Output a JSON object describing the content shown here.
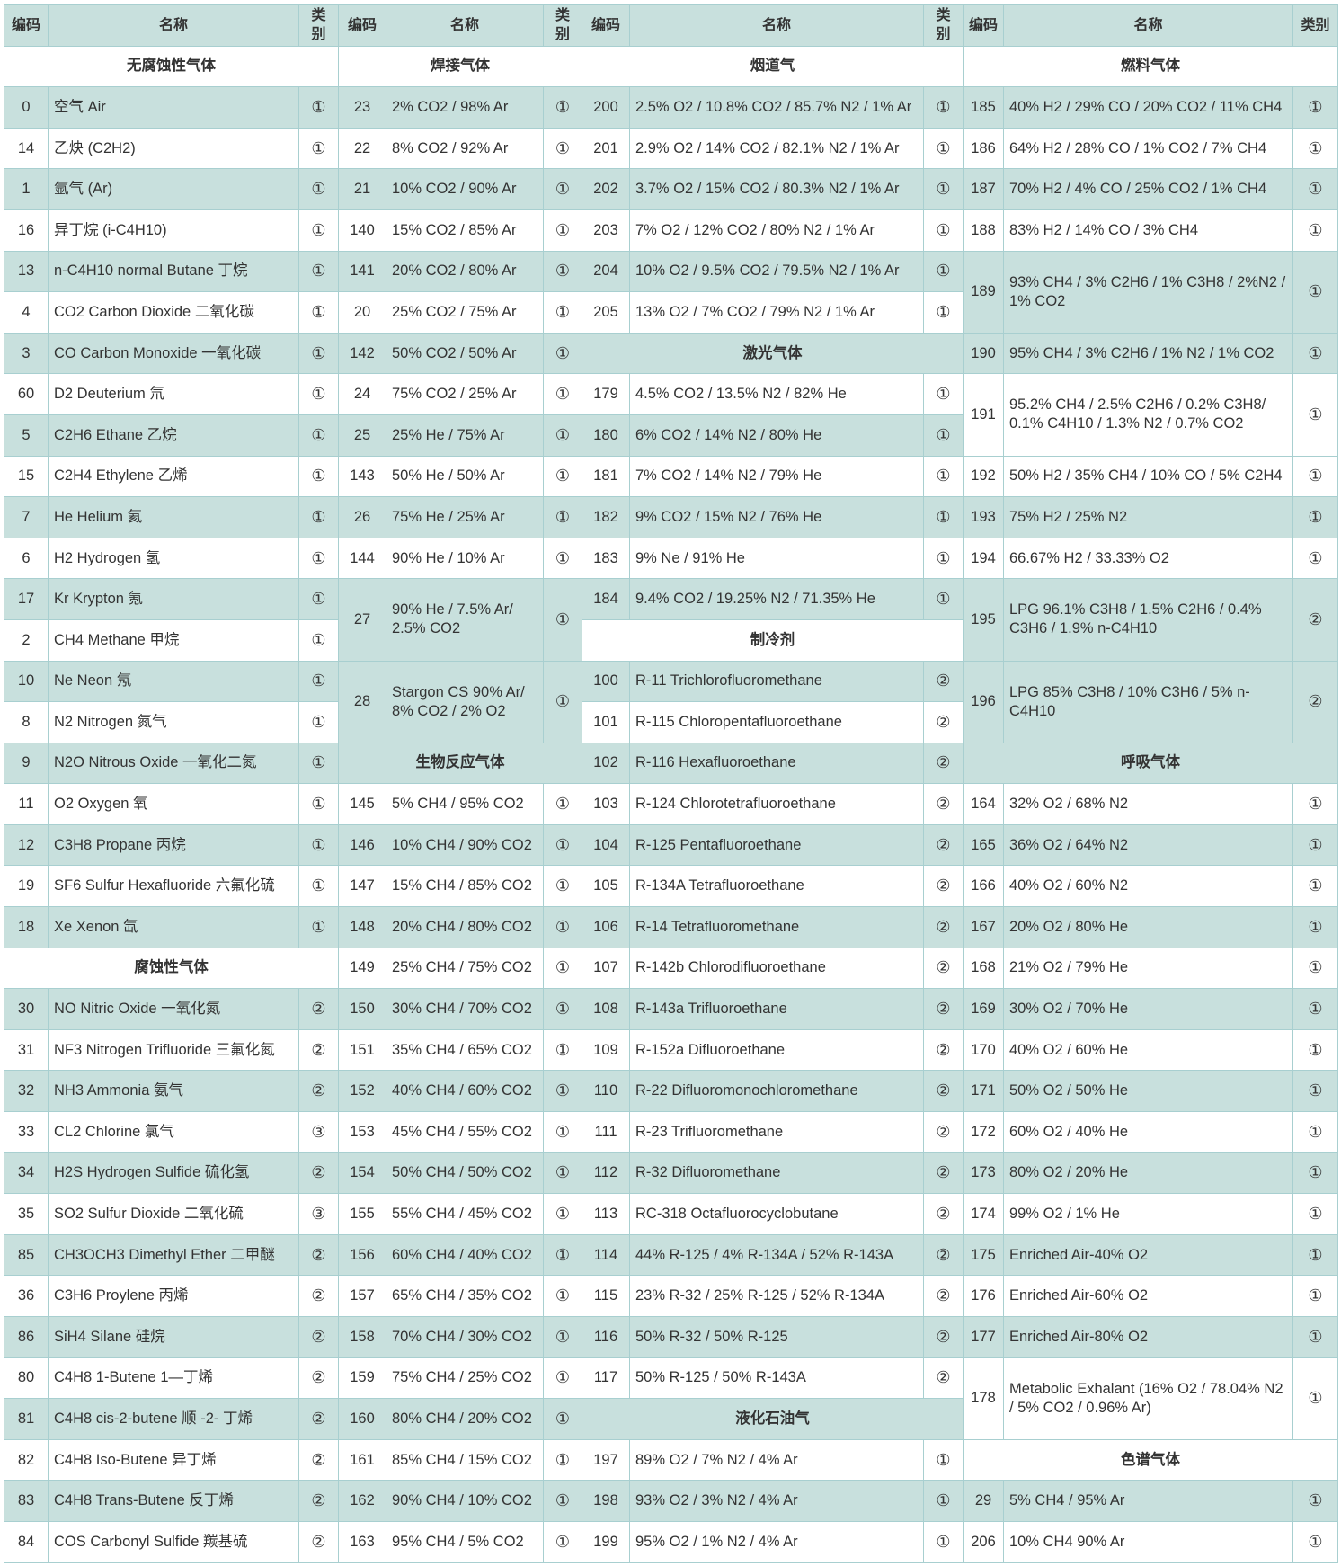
{
  "header": {
    "code": "编码",
    "name": "名称",
    "cat": "类别"
  },
  "colors": {
    "shade": "#c8e0dd",
    "border": "#a8cfd0",
    "text": "#333333"
  },
  "groups": [
    {
      "entries": [
        {
          "section": "无腐蚀性气体"
        },
        {
          "code": "0",
          "name": "空气 Air",
          "cat": "①"
        },
        {
          "code": "14",
          "name": "乙炔 (C2H2)",
          "cat": "①"
        },
        {
          "code": "1",
          "name": "氩气 (Ar)",
          "cat": "①"
        },
        {
          "code": "16",
          "name": "异丁烷 (i-C4H10)",
          "cat": "①"
        },
        {
          "code": "13",
          "name": "n-C4H10 normal Butane 丁烷",
          "cat": "①"
        },
        {
          "code": "4",
          "name": "CO2 Carbon Dioxide 二氧化碳",
          "cat": "①"
        },
        {
          "code": "3",
          "name": "CO Carbon Monoxide 一氧化碳",
          "cat": "①"
        },
        {
          "code": "60",
          "name": "D2 Deuterium 氘",
          "cat": "①"
        },
        {
          "code": "5",
          "name": "C2H6 Ethane 乙烷",
          "cat": "①"
        },
        {
          "code": "15",
          "name": "C2H4 Ethylene 乙烯",
          "cat": "①"
        },
        {
          "code": "7",
          "name": "He Helium 氦",
          "cat": "①"
        },
        {
          "code": "6",
          "name": "H2 Hydrogen 氢",
          "cat": "①"
        },
        {
          "code": "17",
          "name": "Kr Krypton 氪",
          "cat": "①"
        },
        {
          "code": "2",
          "name": "CH4 Methane 甲烷",
          "cat": "①"
        },
        {
          "code": "10",
          "name": "Ne Neon 氖",
          "cat": "①"
        },
        {
          "code": "8",
          "name": "N2 Nitrogen 氮气",
          "cat": "①"
        },
        {
          "code": "9",
          "name": "N2O Nitrous Oxide 一氧化二氮",
          "cat": "①"
        },
        {
          "code": "11",
          "name": "O2 Oxygen 氧",
          "cat": "①"
        },
        {
          "code": "12",
          "name": "C3H8 Propane 丙烷",
          "cat": "①"
        },
        {
          "code": "19",
          "name": "SF6 Sulfur Hexafluoride 六氟化硫",
          "cat": "①"
        },
        {
          "code": "18",
          "name": "Xe Xenon 氙",
          "cat": "①"
        },
        {
          "section": "腐蚀性气体"
        },
        {
          "code": "30",
          "name": "NO Nitric Oxide 一氧化氮",
          "cat": "②"
        },
        {
          "code": "31",
          "name": "NF3 Nitrogen Trifluoride 三氟化氮",
          "cat": "②"
        },
        {
          "code": "32",
          "name": "NH3 Ammonia 氨气",
          "cat": "②"
        },
        {
          "code": "33",
          "name": "CL2 Chlorine 氯气",
          "cat": "③"
        },
        {
          "code": "34",
          "name": "H2S Hydrogen Sulfide 硫化氢",
          "cat": "②"
        },
        {
          "code": "35",
          "name": "SO2 Sulfur Dioxide 二氧化硫",
          "cat": "③"
        },
        {
          "code": "85",
          "name": "CH3OCH3 Dimethyl Ether 二甲醚",
          "cat": "②"
        },
        {
          "code": "36",
          "name": "C3H6 Proylene 丙烯",
          "cat": "②"
        },
        {
          "code": "86",
          "name": "SiH4 Silane 硅烷",
          "cat": "②"
        },
        {
          "code": "80",
          "name": "C4H8 1-Butene 1—丁烯",
          "cat": "②"
        },
        {
          "code": "81",
          "name": "C4H8 cis-2-butene 顺 -2- 丁烯",
          "cat": "②"
        },
        {
          "code": "82",
          "name": "C4H8 Iso-Butene 异丁烯",
          "cat": "②"
        },
        {
          "code": "83",
          "name": "C4H8 Trans-Butene 反丁烯",
          "cat": "②"
        },
        {
          "code": "84",
          "name": "COS Carbonyl Sulfide 羰基硫",
          "cat": "②"
        }
      ]
    },
    {
      "entries": [
        {
          "section": "焊接气体"
        },
        {
          "code": "23",
          "name": "2% CO2 / 98% Ar",
          "cat": "①"
        },
        {
          "code": "22",
          "name": "8% CO2 / 92% Ar",
          "cat": "①"
        },
        {
          "code": "21",
          "name": "10% CO2 / 90% Ar",
          "cat": "①"
        },
        {
          "code": "140",
          "name": "15% CO2 / 85% Ar",
          "cat": "①"
        },
        {
          "code": "141",
          "name": "20% CO2 / 80% Ar",
          "cat": "①"
        },
        {
          "code": "20",
          "name": "25% CO2 / 75% Ar",
          "cat": "①"
        },
        {
          "code": "142",
          "name": "50% CO2 / 50% Ar",
          "cat": "①"
        },
        {
          "code": "24",
          "name": "75% CO2 / 25% Ar",
          "cat": "①"
        },
        {
          "code": "25",
          "name": "25% He / 75% Ar",
          "cat": "①"
        },
        {
          "code": "143",
          "name": "50% He / 50% Ar",
          "cat": "①"
        },
        {
          "code": "26",
          "name": "75% He / 25% Ar",
          "cat": "①"
        },
        {
          "code": "144",
          "name": "90% He / 10% Ar",
          "cat": "①"
        },
        {
          "code": "27",
          "name": "90% He / 7.5% Ar/ 2.5% CO2",
          "cat": "①",
          "span": 2
        },
        {
          "code": "28",
          "name": "Stargon CS 90% Ar/ 8% CO2 / 2% O2",
          "cat": "①",
          "span": 2
        },
        {
          "section": "生物反应气体"
        },
        {
          "code": "145",
          "name": "5% CH4 / 95% CO2",
          "cat": "①"
        },
        {
          "code": "146",
          "name": "10% CH4 / 90% CO2",
          "cat": "①"
        },
        {
          "code": "147",
          "name": "15% CH4 / 85% CO2",
          "cat": "①"
        },
        {
          "code": "148",
          "name": "20% CH4 / 80% CO2",
          "cat": "①"
        },
        {
          "code": "149",
          "name": "25% CH4 / 75% CO2",
          "cat": "①"
        },
        {
          "code": "150",
          "name": "30% CH4 / 70% CO2",
          "cat": "①"
        },
        {
          "code": "151",
          "name": "35% CH4 / 65% CO2",
          "cat": "①"
        },
        {
          "code": "152",
          "name": "40% CH4 / 60% CO2",
          "cat": "①"
        },
        {
          "code": "153",
          "name": "45% CH4 / 55% CO2",
          "cat": "①"
        },
        {
          "code": "154",
          "name": "50% CH4 / 50% CO2",
          "cat": "①"
        },
        {
          "code": "155",
          "name": "55% CH4 / 45% CO2",
          "cat": "①"
        },
        {
          "code": "156",
          "name": "60% CH4 / 40% CO2",
          "cat": "①"
        },
        {
          "code": "157",
          "name": "65% CH4 / 35% CO2",
          "cat": "①"
        },
        {
          "code": "158",
          "name": "70% CH4 / 30% CO2",
          "cat": "①"
        },
        {
          "code": "159",
          "name": "75% CH4 / 25% CO2",
          "cat": "①"
        },
        {
          "code": "160",
          "name": "80% CH4 / 20% CO2",
          "cat": "①"
        },
        {
          "code": "161",
          "name": "85% CH4 / 15% CO2",
          "cat": "①"
        },
        {
          "code": "162",
          "name": "90% CH4 / 10% CO2",
          "cat": "①"
        },
        {
          "code": "163",
          "name": "95% CH4 /  5% CO2",
          "cat": "①"
        }
      ]
    },
    {
      "entries": [
        {
          "section": "烟道气"
        },
        {
          "code": "200",
          "name": "2.5% O2 / 10.8% CO2 / 85.7% N2 / 1% Ar",
          "cat": "①"
        },
        {
          "code": "201",
          "name": "2.9% O2 / 14% CO2 / 82.1% N2 / 1% Ar",
          "cat": "①"
        },
        {
          "code": "202",
          "name": "3.7% O2 / 15% CO2 / 80.3% N2 / 1% Ar",
          "cat": "①"
        },
        {
          "code": "203",
          "name": "7% O2 / 12% CO2 / 80% N2 / 1% Ar",
          "cat": "①"
        },
        {
          "code": "204",
          "name": "10% O2 / 9.5% CO2 / 79.5% N2 / 1% Ar",
          "cat": "①"
        },
        {
          "code": "205",
          "name": "13% O2 / 7% CO2 / 79% N2 / 1% Ar",
          "cat": "①"
        },
        {
          "section": "激光气体"
        },
        {
          "code": "179",
          "name": "4.5% CO2 / 13.5% N2 / 82% He",
          "cat": "①"
        },
        {
          "code": "180",
          "name": "6% CO2 / 14% N2 / 80% He",
          "cat": "①"
        },
        {
          "code": "181",
          "name": "7% CO2 / 14% N2 / 79% He",
          "cat": "①"
        },
        {
          "code": "182",
          "name": "9% CO2 / 15% N2 / 76% He",
          "cat": "①"
        },
        {
          "code": "183",
          "name": "9% Ne / 91% He",
          "cat": "①"
        },
        {
          "code": "184",
          "name": "9.4% CO2 / 19.25% N2 / 71.35% He",
          "cat": "①"
        },
        {
          "section": "制冷剂"
        },
        {
          "code": "100",
          "name": "R-11 Trichlorofluoromethane",
          "cat": "②"
        },
        {
          "code": "101",
          "name": "R-115 Chloropentafluoroethane",
          "cat": "②"
        },
        {
          "code": "102",
          "name": "R-116 Hexafluoroethane",
          "cat": "②"
        },
        {
          "code": "103",
          "name": "R-124 Chlorotetrafluoroethane",
          "cat": "②"
        },
        {
          "code": "104",
          "name": "R-125 Pentafluoroethane",
          "cat": "②"
        },
        {
          "code": "105",
          "name": "R-134A Tetrafluoroethane",
          "cat": "②"
        },
        {
          "code": "106",
          "name": "R-14 Tetrafluoromethane",
          "cat": "②"
        },
        {
          "code": "107",
          "name": "R-142b Chlorodifluoroethane",
          "cat": "②"
        },
        {
          "code": "108",
          "name": "R-143a Trifluoroethane",
          "cat": "②"
        },
        {
          "code": "109",
          "name": "R-152a Difluoroethane",
          "cat": "②"
        },
        {
          "code": "110",
          "name": "R-22 Difluoromonochloromethane",
          "cat": "②"
        },
        {
          "code": "111",
          "name": "R-23 Trifluoromethane",
          "cat": "②"
        },
        {
          "code": "112",
          "name": "R-32 Difluoromethane",
          "cat": "②"
        },
        {
          "code": "113",
          "name": "RC-318 Octafluorocyclobutane",
          "cat": "②"
        },
        {
          "code": "114",
          "name": "44% R-125 / 4% R-134A / 52% R-143A",
          "cat": "②"
        },
        {
          "code": "115",
          "name": "23% R-32 / 25% R-125 / 52% R-134A",
          "cat": "②"
        },
        {
          "code": "116",
          "name": "50% R-32 / 50% R-125",
          "cat": "②"
        },
        {
          "code": "117",
          "name": "50% R-125 / 50% R-143A",
          "cat": "②"
        },
        {
          "section": "液化石油气"
        },
        {
          "code": "197",
          "name": "89% O2 / 7% N2 / 4% Ar",
          "cat": "①"
        },
        {
          "code": "198",
          "name": "93% O2 / 3% N2 / 4% Ar",
          "cat": "①"
        },
        {
          "code": "199",
          "name": "95% O2 / 1% N2 / 4% Ar",
          "cat": "①"
        }
      ]
    },
    {
      "entries": [
        {
          "section": "燃料气体"
        },
        {
          "code": "185",
          "name": "40% H2 / 29% CO / 20% CO2 / 11% CH4",
          "cat": "①"
        },
        {
          "code": "186",
          "name": "64% H2 / 28% CO / 1% CO2 / 7% CH4",
          "cat": "①"
        },
        {
          "code": "187",
          "name": "70% H2 / 4% CO / 25% CO2 / 1% CH4",
          "cat": "①"
        },
        {
          "code": "188",
          "name": "83% H2 / 14% CO / 3% CH4",
          "cat": "①"
        },
        {
          "code": "189",
          "name": "93% CH4 / 3% C2H6 / 1% C3H8 / 2%N2 / 1% CO2",
          "cat": "①",
          "span": 2
        },
        {
          "code": "190",
          "name": "95% CH4 / 3% C2H6 / 1% N2 / 1% CO2",
          "cat": "①"
        },
        {
          "code": "191",
          "name": "95.2% CH4 / 2.5% C2H6 / 0.2% C3H8/ 0.1% C4H10 / 1.3% N2 / 0.7% CO2",
          "cat": "①",
          "span": 2
        },
        {
          "code": "192",
          "name": "50% H2 / 35% CH4 / 10% CO / 5% C2H4",
          "cat": "①"
        },
        {
          "code": "193",
          "name": "75% H2 / 25% N2",
          "cat": "①"
        },
        {
          "code": "194",
          "name": "66.67% H2 / 33.33% O2",
          "cat": "①"
        },
        {
          "code": "195",
          "name": "LPG 96.1% C3H8 / 1.5% C2H6 / 0.4% C3H6 / 1.9% n-C4H10",
          "cat": "②",
          "span": 2
        },
        {
          "code": "196",
          "name": "LPG 85% C3H8 / 10% C3H6 / 5% n-C4H10",
          "cat": "②",
          "span": 2
        },
        {
          "section": "呼吸气体"
        },
        {
          "code": "164",
          "name": "32% O2 / 68% N2",
          "cat": "①"
        },
        {
          "code": "165",
          "name": "36% O2 / 64% N2",
          "cat": "①"
        },
        {
          "code": "166",
          "name": "40% O2 / 60% N2",
          "cat": "①"
        },
        {
          "code": "167",
          "name": "20% O2 / 80% He",
          "cat": "①"
        },
        {
          "code": "168",
          "name": "21% O2 / 79% He",
          "cat": "①"
        },
        {
          "code": "169",
          "name": "30% O2 / 70% He",
          "cat": "①"
        },
        {
          "code": "170",
          "name": "40% O2 / 60% He",
          "cat": "①"
        },
        {
          "code": "171",
          "name": "50% O2 / 50% He",
          "cat": "①"
        },
        {
          "code": "172",
          "name": "60% O2 / 40% He",
          "cat": "①"
        },
        {
          "code": "173",
          "name": "80% O2 / 20% He",
          "cat": "①"
        },
        {
          "code": "174",
          "name": "99% O2 / 1% He",
          "cat": "①"
        },
        {
          "code": "175",
          "name": "Enriched Air-40% O2",
          "cat": "①"
        },
        {
          "code": "176",
          "name": "Enriched Air-60% O2",
          "cat": "①"
        },
        {
          "code": "177",
          "name": "Enriched Air-80% O2",
          "cat": "①"
        },
        {
          "code": "178",
          "name": "Metabolic Exhalant (16% O2 / 78.04% N2 / 5% CO2 / 0.96% Ar)",
          "cat": "①",
          "span": 2
        },
        {
          "section": "色谱气体"
        },
        {
          "code": "29",
          "name": "5% CH4 / 95% Ar",
          "cat": "①"
        },
        {
          "code": "206",
          "name": "10% CH4 90% Ar",
          "cat": "①"
        }
      ]
    }
  ]
}
